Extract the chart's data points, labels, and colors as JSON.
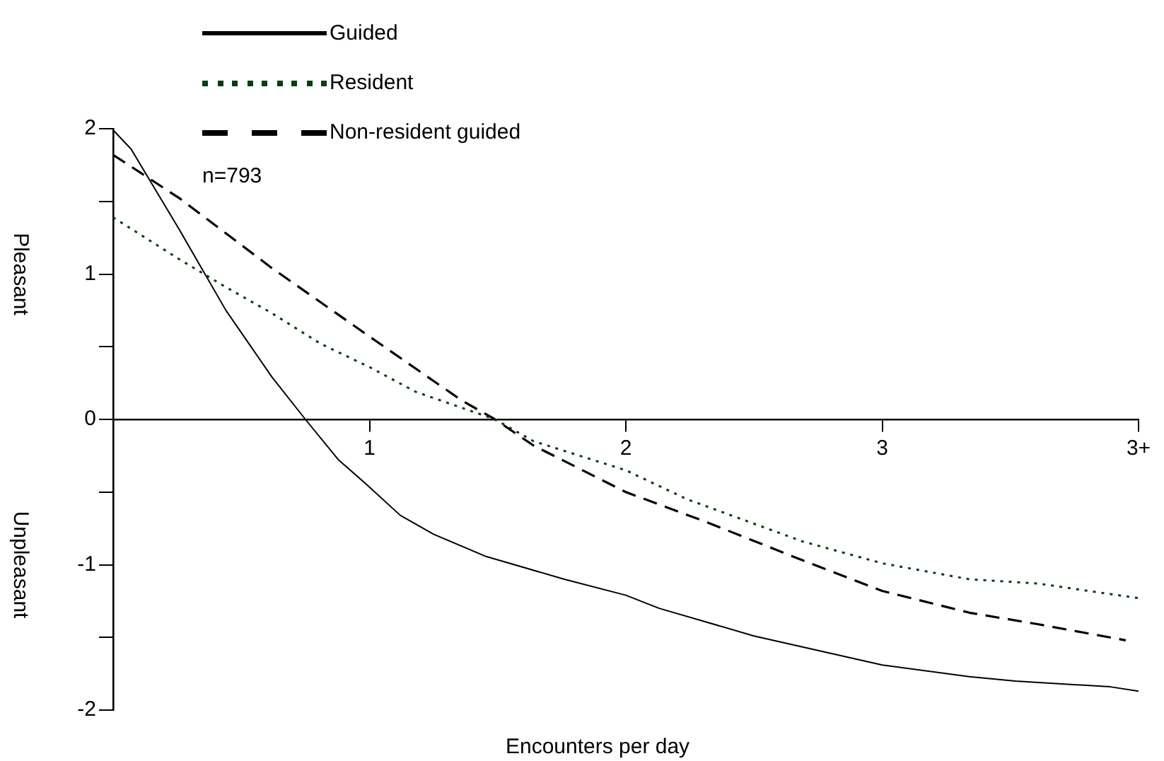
{
  "chart_data": {
    "type": "line",
    "xlabel": "Encounters per day",
    "xlim": [
      0,
      4
    ],
    "xticks": [
      1,
      2,
      3,
      {
        "value": 4,
        "label": "3+"
      }
    ],
    "ylim": [
      -2,
      2
    ],
    "yticks": [
      -2,
      {
        "value": -1.5,
        "label": null
      },
      -1,
      {
        "value": -0.5,
        "label": null
      },
      0,
      {
        "value": 0.5,
        "label": null
      },
      1,
      {
        "value": 1.5,
        "label": null
      },
      2
    ],
    "grid": false,
    "legend": "top left",
    "marker": "none",
    "annotations": [
      "n=793",
      "Pleasant",
      "Unpleasant"
    ],
    "series": [
      {
        "name": "Guided",
        "color": "#000000",
        "line_style": "solid",
        "x": [
          0,
          0.07,
          0.26,
          0.44,
          0.62,
          0.75,
          0.88,
          0.99,
          1.12,
          1.25,
          1.45,
          1.76,
          2,
          2.13,
          2.5,
          3,
          3.34,
          3.52,
          3.89,
          4
        ],
        "values": [
          1.99,
          1.86,
          1.3,
          0.75,
          0.29,
          0,
          -0.28,
          -0.45,
          -0.66,
          -0.79,
          -0.94,
          -1.1,
          -1.21,
          -1.3,
          -1.49,
          -1.69,
          -1.77,
          -1.8,
          -1.84,
          -1.87
        ]
      },
      {
        "name": "Resident",
        "color": "#0b3d0b",
        "line_style": "dotted",
        "x": [
          0,
          0.26,
          0.44,
          0.62,
          0.81,
          1,
          1.18,
          1.36,
          1.49,
          1.64,
          2,
          2.24,
          2.69,
          3,
          3.34,
          3.61,
          4
        ],
        "values": [
          1.39,
          1.1,
          0.91,
          0.73,
          0.52,
          0.36,
          0.19,
          0.08,
          0,
          -0.15,
          -0.35,
          -0.55,
          -0.84,
          -0.99,
          -1.1,
          -1.13,
          -1.23
        ]
      },
      {
        "name": "Non-resident guided",
        "color": "#000000",
        "line_style": "dashed",
        "x": [
          0,
          0.26,
          0.62,
          1,
          1.36,
          1.49,
          1.64,
          2,
          2.32,
          2.69,
          3,
          3.34,
          3.61,
          3.95
        ],
        "values": [
          1.82,
          1.52,
          1.04,
          0.57,
          0.13,
          0,
          -0.18,
          -0.5,
          -0.71,
          -0.97,
          -1.18,
          -1.33,
          -1.41,
          -1.52
        ]
      }
    ]
  }
}
